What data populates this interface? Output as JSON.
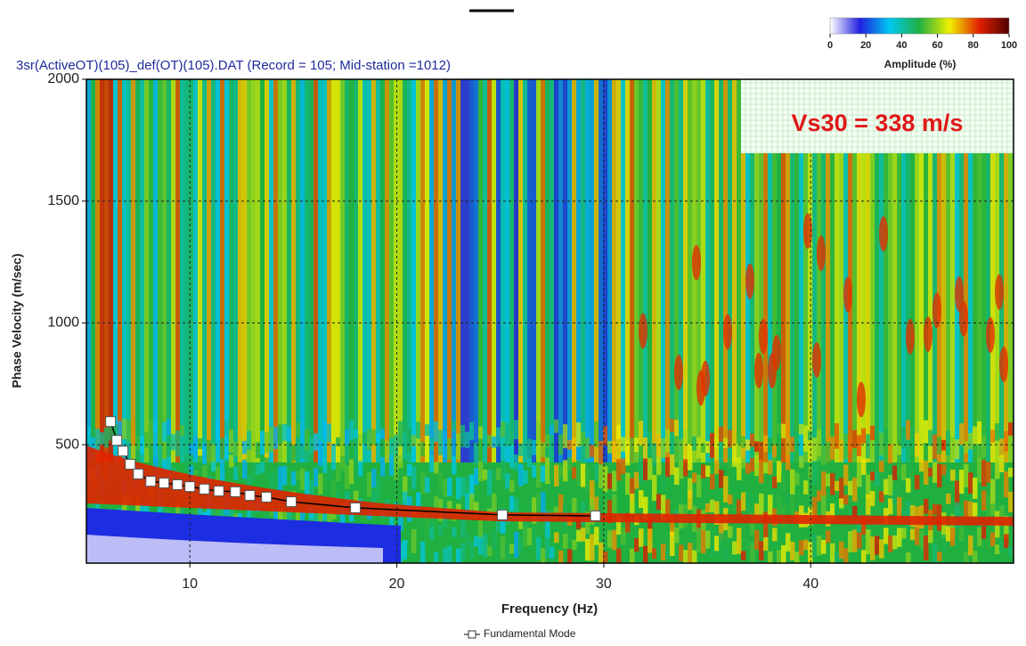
{
  "chart_data": {
    "type": "line",
    "title": "3sr(ActiveOT)(105)_def(OT)(105).DAT  (Record = 105; Mid-station =1012)",
    "x_label": "Frequency (Hz)",
    "y_label": "Phase Velocity (m/sec)",
    "annotation": "Vs30 = 338 m/s",
    "xlim": [
      5,
      49.8
    ],
    "ylim": [
      14,
      2000
    ],
    "xticks": [
      10,
      20,
      30,
      40
    ],
    "yticks": [
      500,
      1000,
      1500,
      2000
    ],
    "grid": true,
    "legend": "bottom",
    "series": [
      {
        "name": "Fundamental Mode",
        "color": "#000000",
        "x": [
          6.17,
          6.47,
          6.77,
          7.12,
          7.51,
          8.11,
          8.75,
          9.4,
          10,
          10.7,
          11.4,
          12.2,
          12.9,
          13.7,
          14.9,
          18.0,
          25.1,
          29.6
        ],
        "values": [
          595,
          518,
          474,
          420,
          380,
          350,
          343,
          336,
          328,
          318,
          310,
          307,
          292,
          285,
          266,
          241,
          212,
          208
        ]
      }
    ],
    "colorbar": {
      "label": "Amplitude (%)",
      "lim": [
        0,
        100
      ],
      "ticks": [
        0,
        20,
        40,
        60,
        80,
        100
      ],
      "colormap": [
        "#ffffff",
        "#2020e0",
        "#00c8f0",
        "#20b040",
        "#f0f000",
        "#e02000",
        "#500000"
      ]
    }
  }
}
